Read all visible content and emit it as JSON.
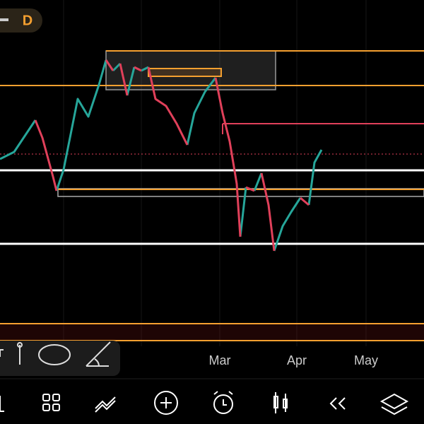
{
  "timeframe": "D",
  "x_axis": {
    "labels": [
      "Mar",
      "Apr",
      "May"
    ]
  }
}
